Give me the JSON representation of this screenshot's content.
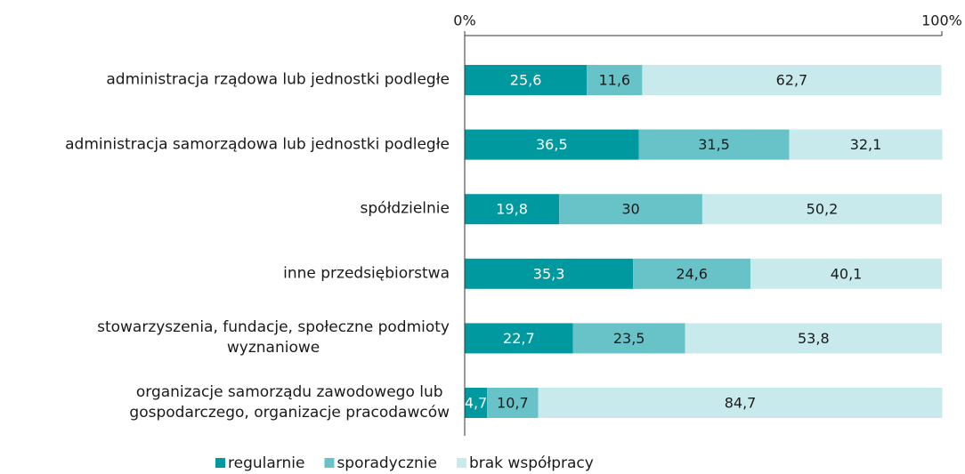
{
  "chart_data": {
    "type": "stacked_barh",
    "categories": [
      "administracja rządowa lub jednostki podległe",
      "administracja samorządowa lub jednostki podległe",
      "spółdzielnie",
      "inne przedsiębiorstwa",
      "stowarzyszenia, fundacje, społeczne podmioty\nwyznaniowe",
      "organizacje samorządu zawodowego lub\ngospodarczego, organizacje pracodawców"
    ],
    "series": [
      {
        "name": "regularnie",
        "color": "#00999f",
        "values": [
          25.6,
          36.5,
          19.8,
          35.3,
          22.7,
          4.7
        ],
        "value_labels": [
          "25,6",
          "36,5",
          "19,8",
          "35,3",
          "22,7",
          "4,7"
        ]
      },
      {
        "name": "sporadycznie",
        "color": "#67c3c8",
        "values": [
          11.6,
          31.5,
          30,
          24.6,
          23.5,
          10.7
        ],
        "value_labels": [
          "11,6",
          "31,5",
          "30",
          "24,6",
          "23,5",
          "10,7"
        ]
      },
      {
        "name": "brak współpracy",
        "color": "#c9eaec",
        "values": [
          62.7,
          32.1,
          50.2,
          40.1,
          53.8,
          84.7
        ],
        "value_labels": [
          "62,7",
          "32,1",
          "50,2",
          "40,1",
          "53,8",
          "84,7"
        ]
      }
    ],
    "xlim": [
      0,
      100
    ],
    "xticks": [
      {
        "value": 0,
        "label": "0%"
      },
      {
        "value": 100,
        "label": "100%"
      }
    ],
    "legend": "bottom"
  }
}
